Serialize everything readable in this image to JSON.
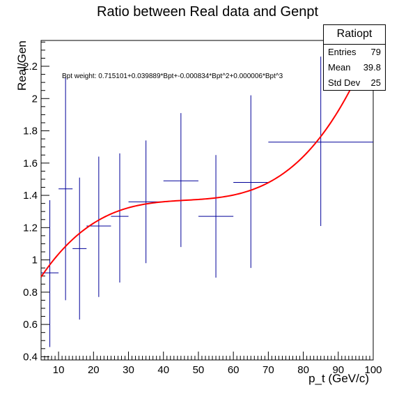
{
  "title": "Ratio between Real data and Genpt",
  "fit_label": "Bpt weight: 0.715101+0.039889*Bpt+-0.000834*Bpt^2+0.000006*Bpt^3",
  "stats": {
    "name": "Ratiopt",
    "rows": [
      {
        "label": "Entries",
        "value": "79"
      },
      {
        "label": "Mean",
        "value": "39.8"
      },
      {
        "label": "Std Dev",
        "value": "25"
      }
    ]
  },
  "chart_data": {
    "type": "scatter",
    "title": "Ratio between Real data and Genpt",
    "xlabel": "p_t (GeV/c)",
    "ylabel": "Real/Gen",
    "xlim": [
      5,
      100
    ],
    "ylim": [
      0.38,
      2.36
    ],
    "x_ticks": [
      10,
      20,
      30,
      40,
      50,
      60,
      70,
      80,
      90,
      100
    ],
    "y_ticks": [
      0.4,
      0.6,
      0.8,
      1,
      1.2,
      1.4,
      1.6,
      1.8,
      2,
      2.2
    ],
    "points": [
      {
        "xlo": 5,
        "xhi": 10,
        "y": 0.92,
        "ylo": 0.46,
        "yhi": 1.37
      },
      {
        "xlo": 10,
        "xhi": 14,
        "y": 1.44,
        "ylo": 0.75,
        "yhi": 2.13
      },
      {
        "xlo": 14,
        "xhi": 18,
        "y": 1.07,
        "ylo": 0.63,
        "yhi": 1.51
      },
      {
        "xlo": 18,
        "xhi": 25,
        "y": 1.21,
        "ylo": 0.77,
        "yhi": 1.64
      },
      {
        "xlo": 25,
        "xhi": 30,
        "y": 1.27,
        "ylo": 0.86,
        "yhi": 1.66
      },
      {
        "xlo": 30,
        "xhi": 40,
        "y": 1.36,
        "ylo": 0.98,
        "yhi": 1.74
      },
      {
        "xlo": 40,
        "xhi": 50,
        "y": 1.49,
        "ylo": 1.08,
        "yhi": 1.91
      },
      {
        "xlo": 50,
        "xhi": 60,
        "y": 1.27,
        "ylo": 0.89,
        "yhi": 1.65
      },
      {
        "xlo": 60,
        "xhi": 70,
        "y": 1.48,
        "ylo": 0.95,
        "yhi": 2.02
      },
      {
        "xlo": 70,
        "xhi": 100,
        "y": 1.73,
        "ylo": 1.21,
        "yhi": 2.26
      }
    ],
    "fit": {
      "coefficients": [
        0.715101,
        0.039889,
        -0.000834,
        6e-06
      ],
      "color": "#ff0000"
    },
    "point_color": "#000099",
    "grid": false
  }
}
